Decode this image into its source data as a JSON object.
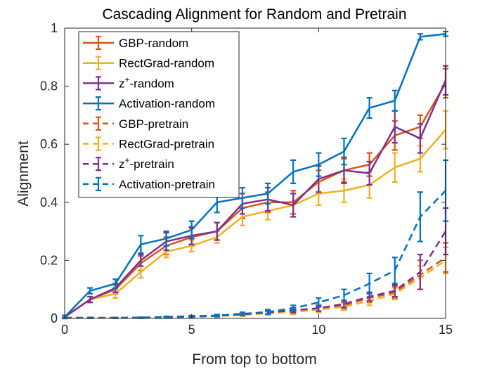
{
  "chart_data": {
    "type": "line",
    "title": "Cascading Alignment for Random and Pretrain",
    "xlabel": "From top to bottom",
    "ylabel": "Alignment",
    "xlim": [
      0,
      15
    ],
    "ylim": [
      0,
      1
    ],
    "xticks": [
      0,
      5,
      10,
      15
    ],
    "yticks": [
      0,
      0.2,
      0.4,
      0.6,
      0.8,
      1
    ],
    "xtick_labels": [
      "0",
      "5",
      "10",
      "15"
    ],
    "ytick_labels": [
      "0",
      "0.2",
      "0.4",
      "0.6",
      "0.8",
      "1"
    ],
    "grid": false,
    "legend_position": "top-left",
    "x": [
      0,
      1,
      2,
      3,
      4,
      5,
      6,
      7,
      8,
      9,
      10,
      11,
      12,
      13,
      14,
      15
    ],
    "series": [
      {
        "name": "GBP-random",
        "sup": "",
        "suffix": "",
        "color": "#D95319",
        "dash": "solid",
        "values": [
          0.005,
          0.065,
          0.1,
          0.19,
          0.25,
          0.28,
          0.3,
          0.38,
          0.4,
          0.4,
          0.47,
          0.51,
          0.53,
          0.63,
          0.66,
          0.81
        ],
        "errors": [
          0.005,
          0.01,
          0.015,
          0.025,
          0.03,
          0.03,
          0.03,
          0.035,
          0.035,
          0.04,
          0.04,
          0.04,
          0.04,
          0.05,
          0.04,
          0.05
        ]
      },
      {
        "name": "RectGrad-random",
        "sup": "",
        "suffix": "",
        "color": "#EDB120",
        "dash": "solid",
        "values": [
          0.005,
          0.065,
          0.085,
          0.16,
          0.23,
          0.25,
          0.28,
          0.35,
          0.37,
          0.39,
          0.43,
          0.44,
          0.46,
          0.52,
          0.55,
          0.65
        ],
        "errors": [
          0.005,
          0.01,
          0.015,
          0.02,
          0.02,
          0.02,
          0.02,
          0.03,
          0.03,
          0.04,
          0.04,
          0.04,
          0.045,
          0.05,
          0.045,
          0.065
        ]
      },
      {
        "name": "z",
        "sup": "+",
        "suffix": "-random",
        "color": "#7E2F8E",
        "dash": "solid",
        "values": [
          0.005,
          0.065,
          0.105,
          0.2,
          0.265,
          0.285,
          0.3,
          0.395,
          0.41,
          0.39,
          0.48,
          0.51,
          0.5,
          0.66,
          0.62,
          0.82
        ],
        "errors": [
          0.005,
          0.01,
          0.015,
          0.02,
          0.03,
          0.03,
          0.03,
          0.035,
          0.04,
          0.04,
          0.045,
          0.045,
          0.04,
          0.055,
          0.05,
          0.05
        ]
      },
      {
        "name": "Activation-random",
        "sup": "",
        "suffix": "",
        "color": "#0072BD",
        "dash": "solid",
        "values": [
          0.005,
          0.095,
          0.12,
          0.255,
          0.275,
          0.305,
          0.4,
          0.415,
          0.43,
          0.505,
          0.53,
          0.575,
          0.725,
          0.75,
          0.97,
          0.98
        ],
        "errors": [
          0.005,
          0.01,
          0.015,
          0.03,
          0.025,
          0.03,
          0.035,
          0.035,
          0.035,
          0.04,
          0.04,
          0.045,
          0.035,
          0.035,
          0.01,
          0.008
        ]
      },
      {
        "name": "GBP-pretrain",
        "sup": "",
        "suffix": "",
        "color": "#D95319",
        "dash": "dashed",
        "values": [
          0.002,
          0.002,
          0.002,
          0.002,
          0.004,
          0.006,
          0.008,
          0.012,
          0.02,
          0.025,
          0.035,
          0.045,
          0.07,
          0.09,
          0.15,
          0.21
        ],
        "errors": [
          0.001,
          0.001,
          0.001,
          0.001,
          0.002,
          0.002,
          0.003,
          0.004,
          0.005,
          0.008,
          0.01,
          0.012,
          0.015,
          0.02,
          0.05,
          0.05
        ]
      },
      {
        "name": "RectGrad-pretrain",
        "sup": "",
        "suffix": "",
        "color": "#EDB120",
        "dash": "dashed",
        "values": [
          0.002,
          0.002,
          0.002,
          0.002,
          0.004,
          0.006,
          0.008,
          0.012,
          0.018,
          0.022,
          0.03,
          0.04,
          0.06,
          0.085,
          0.14,
          0.2
        ],
        "errors": [
          0.001,
          0.001,
          0.001,
          0.001,
          0.002,
          0.002,
          0.003,
          0.004,
          0.005,
          0.008,
          0.01,
          0.012,
          0.015,
          0.02,
          0.04,
          0.045
        ]
      },
      {
        "name": "z",
        "sup": "+",
        "suffix": "-pretrain",
        "color": "#7E2F8E",
        "dash": "dashed",
        "values": [
          0.002,
          0.002,
          0.002,
          0.002,
          0.004,
          0.006,
          0.009,
          0.014,
          0.02,
          0.028,
          0.035,
          0.05,
          0.075,
          0.095,
          0.16,
          0.3
        ],
        "errors": [
          0.001,
          0.001,
          0.001,
          0.001,
          0.002,
          0.002,
          0.003,
          0.004,
          0.006,
          0.008,
          0.01,
          0.012,
          0.015,
          0.02,
          0.06,
          0.08
        ]
      },
      {
        "name": "Activation-pretrain",
        "sup": "",
        "suffix": "",
        "color": "#0072BD",
        "dash": "dashed",
        "values": [
          0.002,
          0.002,
          0.002,
          0.003,
          0.005,
          0.008,
          0.01,
          0.016,
          0.022,
          0.035,
          0.055,
          0.08,
          0.12,
          0.165,
          0.35,
          0.44
        ],
        "errors": [
          0.001,
          0.001,
          0.001,
          0.001,
          0.002,
          0.002,
          0.003,
          0.005,
          0.008,
          0.01,
          0.015,
          0.02,
          0.035,
          0.045,
          0.085,
          0.105
        ]
      }
    ]
  }
}
